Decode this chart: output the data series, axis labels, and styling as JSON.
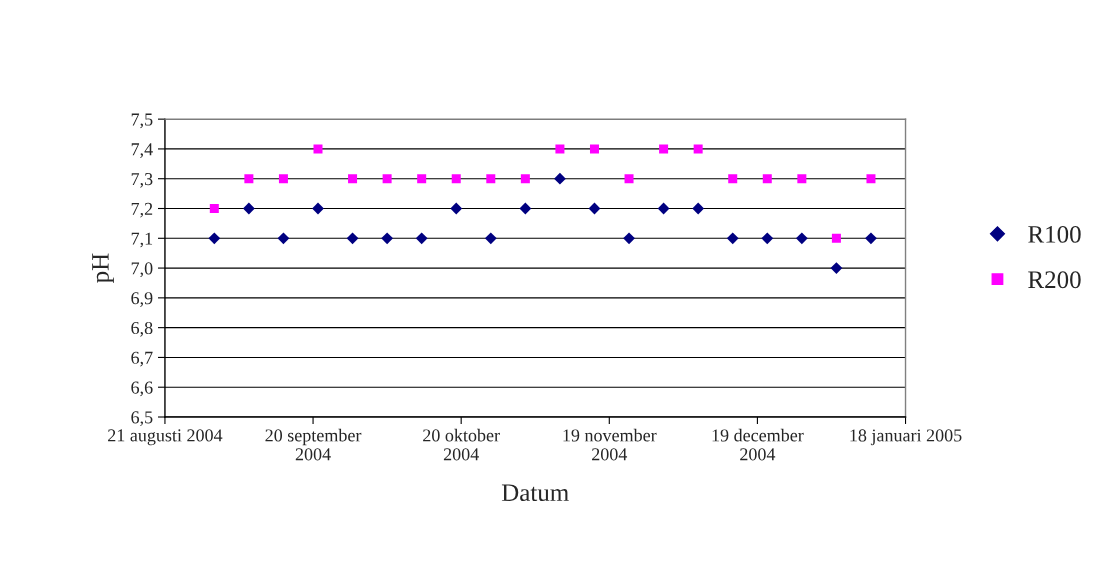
{
  "chart_data": {
    "type": "scatter",
    "xlabel": "Datum",
    "ylabel": "pH",
    "x": [
      "2004-08-31",
      "2004-09-07",
      "2004-09-14",
      "2004-09-21",
      "2004-09-28",
      "2004-10-05",
      "2004-10-12",
      "2004-10-19",
      "2004-10-26",
      "2004-11-02",
      "2004-11-09",
      "2004-11-16",
      "2004-11-23",
      "2004-11-30",
      "2004-12-07",
      "2004-12-14",
      "2004-12-21",
      "2004-12-28",
      "2005-01-04",
      "2005-01-11"
    ],
    "series": [
      {
        "name": "R100",
        "color": "#000080",
        "marker": "diamond",
        "values": [
          7.1,
          7.2,
          7.1,
          7.2,
          7.1,
          7.1,
          7.1,
          7.2,
          7.1,
          7.2,
          7.3,
          7.2,
          7.1,
          7.2,
          7.2,
          7.1,
          7.1,
          7.1,
          7.0,
          7.1
        ]
      },
      {
        "name": "R200",
        "color": "#ff00ff",
        "marker": "square",
        "values": [
          7.2,
          7.3,
          7.3,
          7.4,
          7.3,
          7.3,
          7.3,
          7.3,
          7.3,
          7.3,
          7.4,
          7.4,
          7.3,
          7.4,
          7.4,
          7.3,
          7.3,
          7.3,
          7.1,
          7.3
        ]
      }
    ],
    "xlim": [
      "2004-08-21",
      "2005-01-18"
    ],
    "xticks": [
      {
        "value": "2004-08-21",
        "label": "21 augusti 2004"
      },
      {
        "value": "2004-09-20",
        "label": "20 september\n2004"
      },
      {
        "value": "2004-10-20",
        "label": "20 oktober\n2004"
      },
      {
        "value": "2004-11-19",
        "label": "19 november\n2004"
      },
      {
        "value": "2004-12-19",
        "label": "19 december\n2004"
      },
      {
        "value": "2005-01-18",
        "label": "18 januari 2005"
      }
    ],
    "ylim": [
      6.5,
      7.5
    ],
    "yticks": [
      {
        "value": 6.5,
        "label": "6,5"
      },
      {
        "value": 6.6,
        "label": "6,6"
      },
      {
        "value": 6.7,
        "label": "6,7"
      },
      {
        "value": 6.8,
        "label": "6,8"
      },
      {
        "value": 6.9,
        "label": "6,9"
      },
      {
        "value": 7.0,
        "label": "7,0"
      },
      {
        "value": 7.1,
        "label": "7,1"
      },
      {
        "value": 7.2,
        "label": "7,2"
      },
      {
        "value": 7.3,
        "label": "7,3"
      },
      {
        "value": 7.4,
        "label": "7,4"
      },
      {
        "value": 7.5,
        "label": "7,5"
      }
    ],
    "grid": "y",
    "legend": "right"
  }
}
